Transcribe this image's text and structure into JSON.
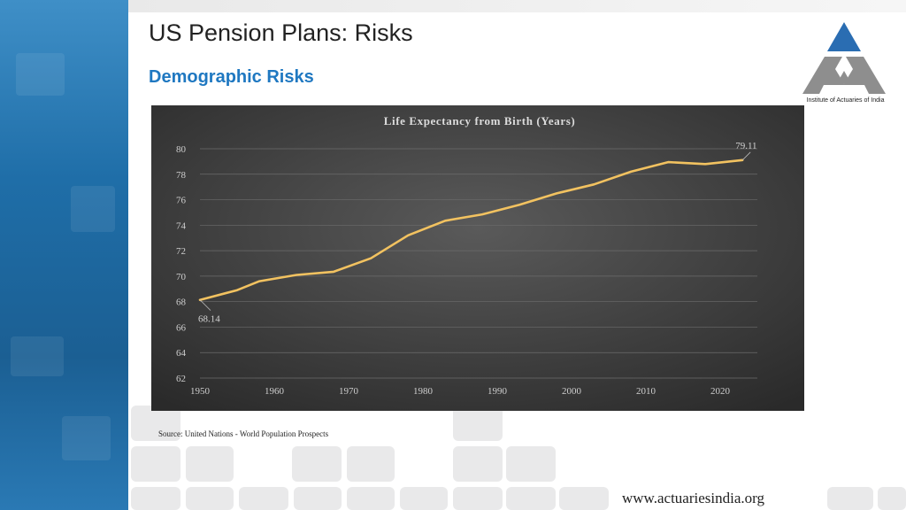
{
  "header": {
    "title": "US Pension Plans: Risks",
    "subtitle": "Demographic Risks"
  },
  "logo": {
    "icon": "triangle-logo-icon",
    "text": "Institute of Actuaries of India",
    "colors": {
      "apex": "#2a6db2",
      "body": "#8e8e8e"
    }
  },
  "chart_data": {
    "type": "line",
    "title": "Life Expectancy from Birth (Years)",
    "xlabel": "",
    "ylabel": "",
    "xlim": [
      1950,
      2025
    ],
    "ylim": [
      62,
      80
    ],
    "x_ticks": [
      1950,
      1960,
      1970,
      1980,
      1990,
      2000,
      2010,
      2020
    ],
    "y_ticks": [
      62,
      64,
      66,
      68,
      70,
      72,
      74,
      76,
      78,
      80
    ],
    "grid": true,
    "series": [
      {
        "color": "#f2c260",
        "points": [
          [
            1950,
            68.14
          ],
          [
            1955,
            68.9
          ],
          [
            1958,
            69.6
          ],
          [
            1963,
            70.1
          ],
          [
            1968,
            70.35
          ],
          [
            1973,
            71.4
          ],
          [
            1978,
            73.2
          ],
          [
            1983,
            74.35
          ],
          [
            1988,
            74.85
          ],
          [
            1993,
            75.6
          ],
          [
            1998,
            76.5
          ],
          [
            2003,
            77.2
          ],
          [
            2008,
            78.2
          ],
          [
            2013,
            78.95
          ],
          [
            2018,
            78.8
          ],
          [
            2023,
            79.11
          ]
        ]
      }
    ],
    "annotations": [
      {
        "x": 1950,
        "y": 68.14,
        "label": "68.14"
      },
      {
        "x": 2023,
        "y": 79.11,
        "label": "79.11"
      }
    ]
  },
  "footer": {
    "source": "Source: United Nations - World Population Prospects",
    "url": "www.actuariesindia.org"
  }
}
